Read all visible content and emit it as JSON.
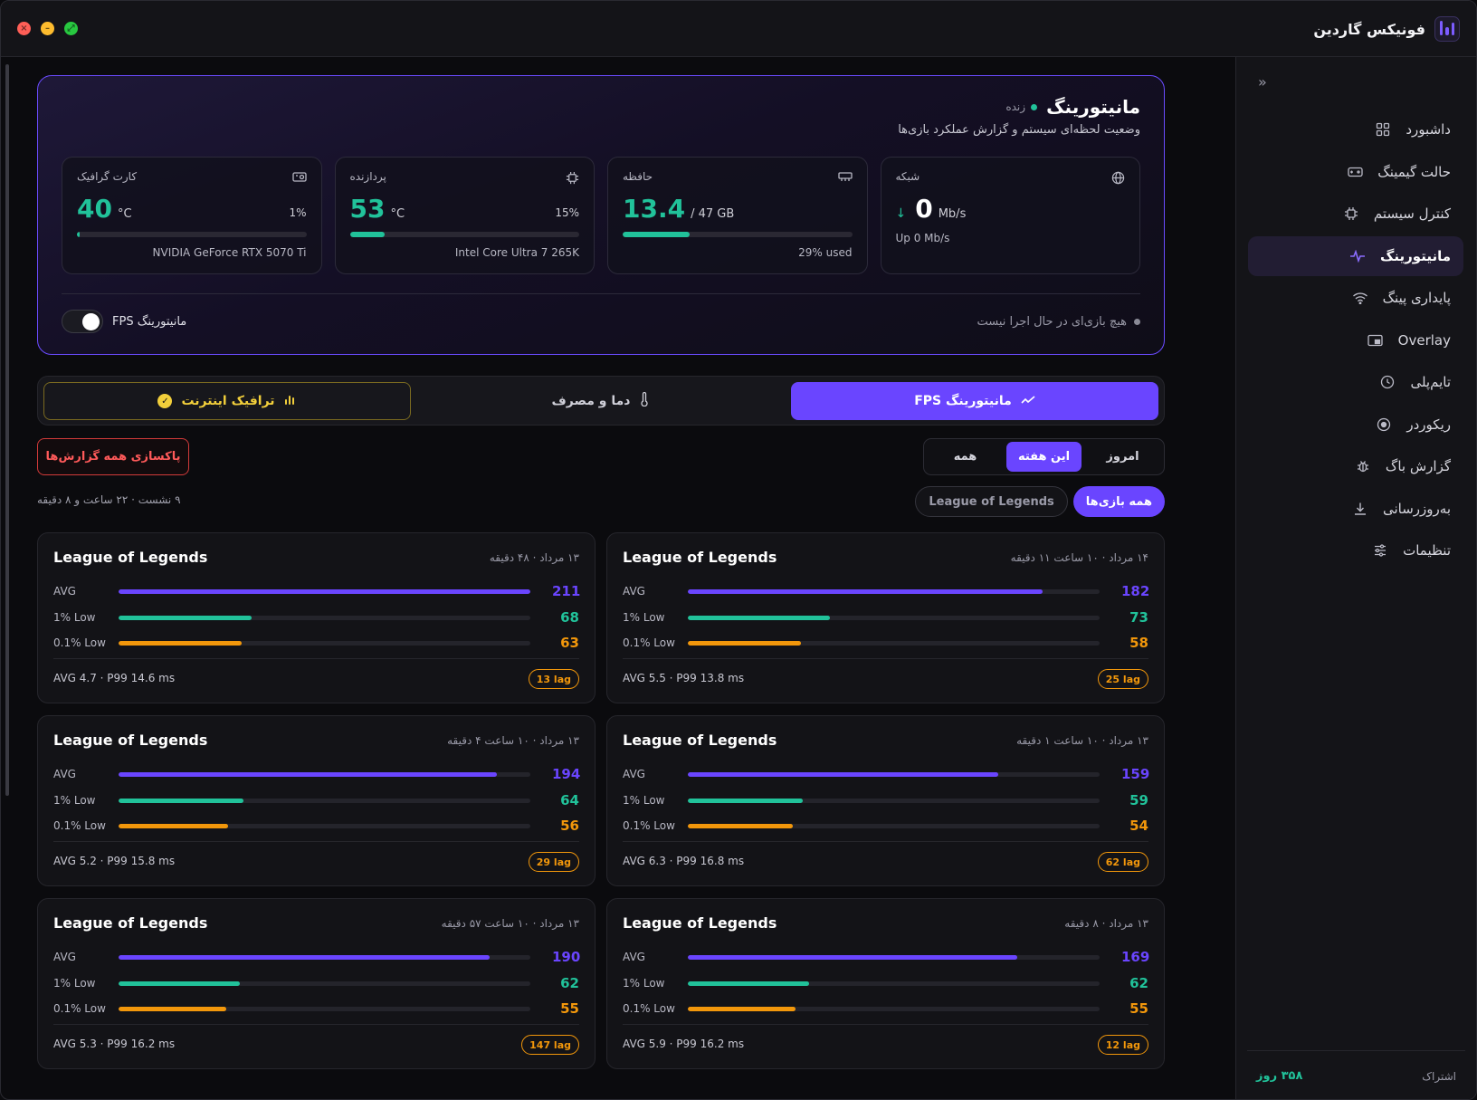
{
  "window": {
    "traffic": [
      "close",
      "minimize",
      "maximize"
    ]
  },
  "app": {
    "title": "فونیکس گاردین",
    "logo_icon": "bars-logo-icon"
  },
  "sidebar": {
    "collapse_icon": "double-chevron-icon",
    "items": [
      {
        "label": "داشبورد",
        "icon": "grid-icon",
        "active": false
      },
      {
        "label": "حالت گیمینگ",
        "icon": "gamepad-icon",
        "active": false
      },
      {
        "label": "کنترل سیستم",
        "icon": "chip-icon",
        "active": false
      },
      {
        "label": "مانیتورینگ",
        "icon": "pulse-icon",
        "active": true
      },
      {
        "label": "پایداری پینگ",
        "icon": "wifi-icon",
        "active": false
      },
      {
        "label": "Overlay",
        "icon": "overlay-icon",
        "active": false
      },
      {
        "label": "تایم‌پلی",
        "icon": "clock-icon",
        "active": false
      },
      {
        "label": "ریکوردر",
        "icon": "record-icon",
        "active": false
      },
      {
        "label": "گزارش باگ",
        "icon": "bug-icon",
        "active": false
      },
      {
        "label": "به‌روزرسانی",
        "icon": "download-icon",
        "active": false
      },
      {
        "label": "تنظیمات",
        "icon": "sliders-icon",
        "active": false
      }
    ],
    "subscription_label": "اشتراک",
    "subscription_days": "۳۵۸ روز"
  },
  "monitor": {
    "title": "مانیتورینگ",
    "live_label": "زنده",
    "subtitle": "وضعیت لحظه‌ای سیستم و گزارش عملکرد بازی‌ها",
    "gpu": {
      "label": "کارت گرافیک",
      "value": "40",
      "unit": "°C",
      "pct": "1%",
      "fill": 0.01,
      "name": "NVIDIA GeForce RTX 5070 Ti"
    },
    "cpu": {
      "label": "پردازنده",
      "value": "53",
      "unit": "°C",
      "pct": "15%",
      "fill": 0.15,
      "name": "Intel Core Ultra 7 265K"
    },
    "mem": {
      "label": "حافظه",
      "value": "13.4",
      "unit": "/ 47 GB",
      "fill": 0.29,
      "foot": "29% used"
    },
    "net": {
      "label": "شبکه",
      "value": "0",
      "unit": "Mb/s",
      "up": "Up 0 Mb/s"
    },
    "fps_toggle_label": "مانیتورینگ FPS",
    "fps_toggle_on": true,
    "no_game": "هیچ بازی‌ای در حال اجرا نیست"
  },
  "tabs": {
    "fps": "مانیتورینگ FPS",
    "temp": "دما و مصرف",
    "traffic": "ترافیک اینترنت"
  },
  "clear_all": "پاکسازی همه گزارش‌ها",
  "range": {
    "today": "امروز",
    "week": "این هفته",
    "all": "همه",
    "selected": "این هفته"
  },
  "summary": "۹ نشست · ۲۲ ساعت و ۸ دقیقه",
  "game_filters": {
    "all": "همه بازی‌ها",
    "lol": "League of Legends"
  },
  "sessions": [
    {
      "game": "League of Legends",
      "date": "۱۴ مرداد · ۱۰ ساعت ۱۱ دقیقه",
      "avg": 182,
      "low1": 73,
      "low01": 58,
      "frametime": "AVG 5.5 · P99 13.8 ms",
      "lag": "25 lag"
    },
    {
      "game": "League of Legends",
      "date": "۱۳ مرداد · ۴۸ دقیقه",
      "avg": 211,
      "low1": 68,
      "low01": 63,
      "frametime": "AVG 4.7 · P99 14.6 ms",
      "lag": "13 lag"
    },
    {
      "game": "League of Legends",
      "date": "۱۳ مرداد · ۱۰ ساعت ۱ دقیقه",
      "avg": 159,
      "low1": 59,
      "low01": 54,
      "frametime": "AVG 6.3 · P99 16.8 ms",
      "lag": "62 lag"
    },
    {
      "game": "League of Legends",
      "date": "۱۳ مرداد · ۱۰ ساعت ۴ دقیقه",
      "avg": 194,
      "low1": 64,
      "low01": 56,
      "frametime": "AVG 5.2 · P99 15.8 ms",
      "lag": "29 lag"
    },
    {
      "game": "League of Legends",
      "date": "۱۳ مرداد · ۸ دقیقه",
      "avg": 169,
      "low1": 62,
      "low01": 55,
      "frametime": "AVG 5.9 · P99 16.2 ms",
      "lag": "12 lag"
    },
    {
      "game": "League of Legends",
      "date": "۱۳ مرداد · ۱۰ ساعت ۵۷ دقیقه",
      "avg": 190,
      "low1": 62,
      "low01": 55,
      "frametime": "AVG 5.3 · P99 16.2 ms",
      "lag": "147 lag"
    }
  ],
  "metric_labels": {
    "avg": "AVG",
    "low1": "1% Low",
    "low01": "0.1% Low"
  },
  "colors": {
    "accent": "#6a45ff",
    "green": "#21c29a",
    "orange": "#f2970b",
    "yellow": "#f2cf3b",
    "red": "#d23a3a"
  }
}
